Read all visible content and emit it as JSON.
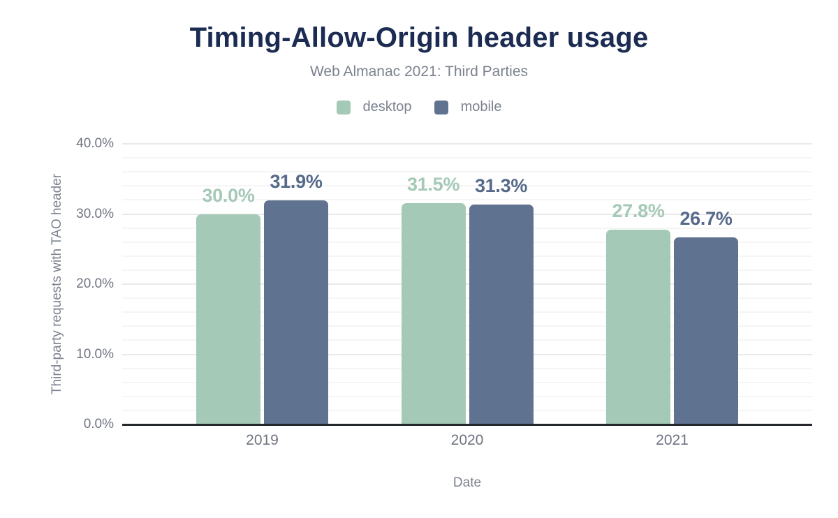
{
  "chart_data": {
    "type": "bar",
    "title": "Timing-Allow-Origin header usage",
    "subtitle": "Web Almanac 2021: Third Parties",
    "categories": [
      "2019",
      "2020",
      "2021"
    ],
    "series": [
      {
        "name": "desktop",
        "values": [
          30.0,
          31.5,
          27.8
        ],
        "labels": [
          "30.0%",
          "31.5%",
          "27.8%"
        ],
        "color": "#a5c9b7",
        "label_color": "#a5c9b7"
      },
      {
        "name": "mobile",
        "values": [
          31.9,
          31.3,
          26.7
        ],
        "labels": [
          "31.9%",
          "31.3%",
          "26.7%"
        ],
        "color": "#5f7290",
        "label_color": "#56698b"
      }
    ],
    "xlabel": "Date",
    "ylabel": "Third-party requests with TAO header",
    "ylim": [
      0,
      40
    ],
    "yticks": [
      {
        "value": 0,
        "label": "0.0%"
      },
      {
        "value": 10,
        "label": "10.0%"
      },
      {
        "value": 20,
        "label": "20.0%"
      },
      {
        "value": 30,
        "label": "30.0%"
      },
      {
        "value": 40,
        "label": "40.0%"
      }
    ],
    "grid": {
      "minor_step": 2,
      "major_step": 10,
      "visible": true
    },
    "legend_position": "top",
    "colors": {
      "title": "#1b2b52",
      "muted_text": "#7c828e",
      "tick_text": "#6e7480",
      "axis_line": "#25282c",
      "background": "#ffffff"
    }
  }
}
